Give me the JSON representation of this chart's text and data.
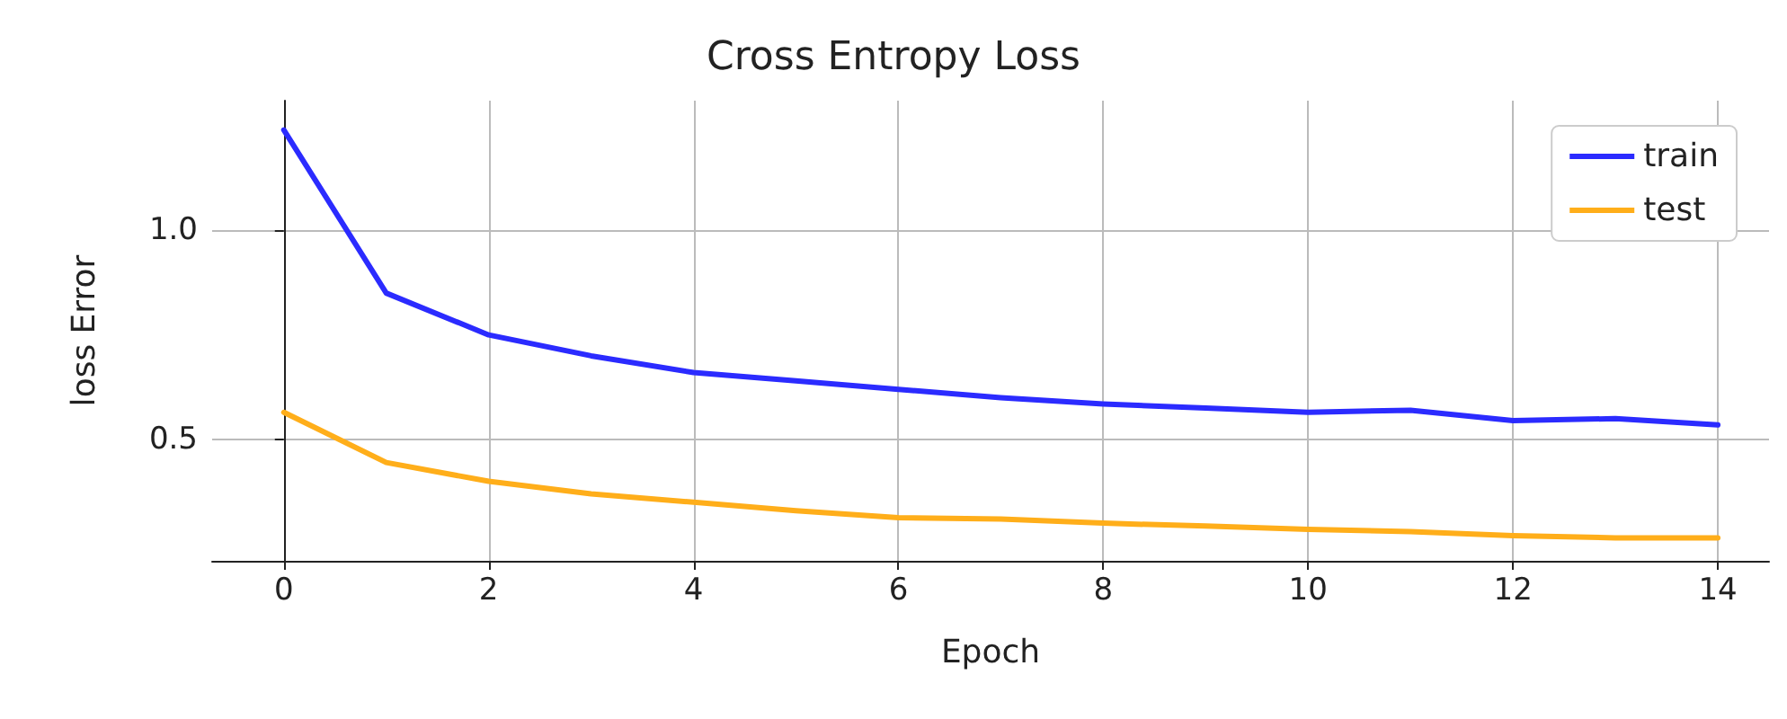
{
  "chart_data": {
    "type": "line",
    "title": "Cross Entropy Loss",
    "xlabel": "Epoch",
    "ylabel": "loss Error",
    "x": [
      0,
      1,
      2,
      3,
      4,
      5,
      6,
      7,
      8,
      9,
      10,
      11,
      12,
      13,
      14
    ],
    "series": [
      {
        "name": "train",
        "color": "#2b2bff",
        "values": [
          1.24,
          0.85,
          0.75,
          0.7,
          0.66,
          0.64,
          0.62,
          0.6,
          0.585,
          0.575,
          0.565,
          0.57,
          0.545,
          0.55,
          0.535
        ]
      },
      {
        "name": "test",
        "color": "#ffae1a",
        "values": [
          0.565,
          0.445,
          0.4,
          0.37,
          0.35,
          0.33,
          0.313,
          0.31,
          0.3,
          0.293,
          0.285,
          0.28,
          0.27,
          0.265,
          0.265
        ]
      }
    ],
    "xlim": [
      -0.7,
      14.5
    ],
    "xticks": [
      0,
      2,
      4,
      6,
      8,
      10,
      12,
      14
    ],
    "ylim": [
      0.21,
      1.31
    ],
    "yticks": [
      {
        "value": 0.5,
        "label": "0.5"
      },
      {
        "value": 1,
        "label": "1.0"
      }
    ],
    "grid": true,
    "legend": "top right",
    "marker": "none",
    "line_style": "solid"
  }
}
